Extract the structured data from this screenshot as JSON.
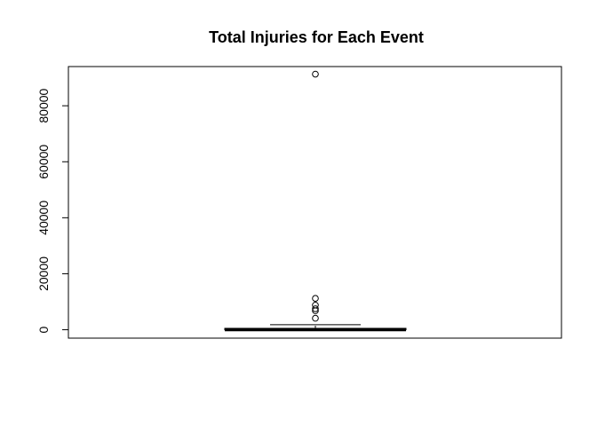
{
  "chart_data": {
    "type": "box",
    "title": "Total Injuries for Each Event",
    "xlabel": "",
    "ylabel": "",
    "ylim": [
      -3000,
      94000
    ],
    "yticks": [
      0,
      20000,
      40000,
      60000,
      80000
    ],
    "ytick_labels": [
      "0",
      "20000",
      "40000",
      "60000",
      "80000"
    ],
    "grid": false,
    "box": {
      "whisker_low": 0,
      "q1": 0,
      "median": 0,
      "q3": 500,
      "whisker_high": 1800
    },
    "outliers": [
      91300,
      11200,
      8800,
      7500,
      6800,
      4100
    ]
  }
}
